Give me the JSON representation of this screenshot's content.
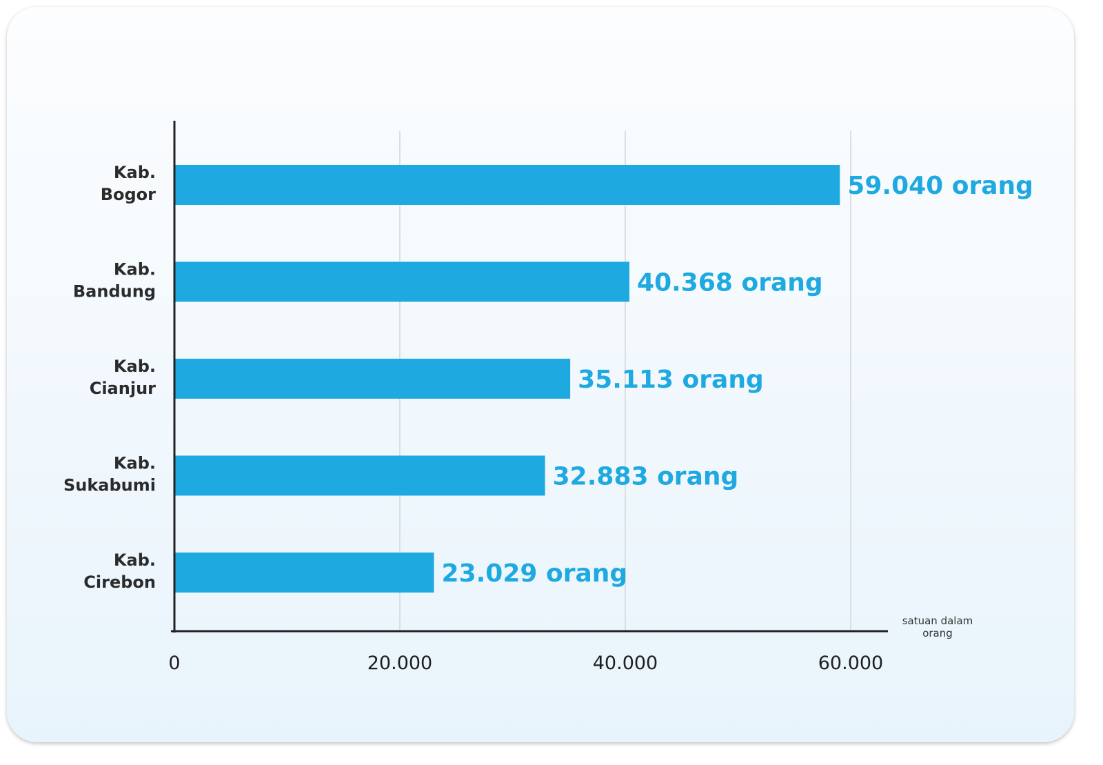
{
  "chart_data": {
    "type": "bar",
    "orientation": "horizontal",
    "categories": [
      [
        "Kab.",
        "Bogor"
      ],
      [
        "Kab.",
        "Bandung"
      ],
      [
        "Kab.",
        "Cianjur"
      ],
      [
        "Kab.",
        "Sukabumi"
      ],
      [
        "Kab.",
        "Cirebon"
      ]
    ],
    "values": [
      59040,
      40368,
      35113,
      32883,
      23029
    ],
    "value_labels": [
      "59.040 orang",
      "40.368 orang",
      "35.113 orang",
      "32.883 orang",
      "23.029 orang"
    ],
    "xlim": [
      0,
      63000
    ],
    "x_ticks": [
      0,
      20000,
      40000,
      60000
    ],
    "x_tick_labels": [
      "0",
      "20.000",
      "40.000",
      "60.000"
    ],
    "unit_note": [
      "satuan dalam",
      "orang"
    ],
    "grid": "vertical",
    "legend": "none",
    "colors": {
      "bar": "#1fa9e1",
      "value_text": "#1fa9e1",
      "axis": "#222222",
      "grid": "#dcdfe2",
      "category_text": "#2b2b2b"
    }
  }
}
